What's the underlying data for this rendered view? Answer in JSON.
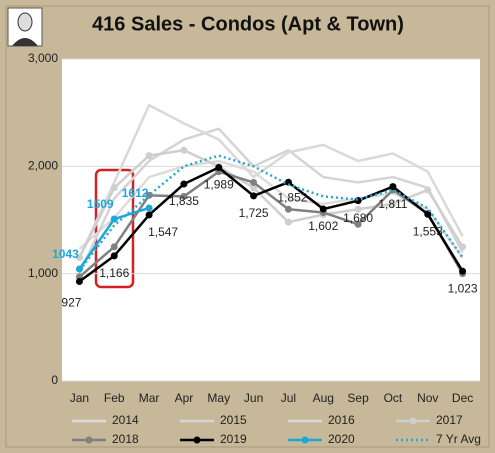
{
  "chart_data": {
    "type": "line",
    "title": "416 Sales - Condos (Apt & Town)",
    "categories": [
      "Jan",
      "Feb",
      "Mar",
      "Apr",
      "May",
      "Jun",
      "Jul",
      "Aug",
      "Sep",
      "Oct",
      "Nov",
      "Dec"
    ],
    "ylim": [
      0,
      3000
    ],
    "yticks": [
      0,
      {
        "value": 1000,
        "label": "1,000"
      },
      {
        "value": 2000,
        "label": "2,000"
      },
      {
        "value": 3000,
        "label": "3,000"
      }
    ],
    "grid": true,
    "legend": "bottom",
    "series": [
      {
        "name": "2014",
        "color": "#dcdcdc",
        "values": [
          1230,
          1520,
          1900,
          2000,
          2050,
          1950,
          1700,
          1650,
          1700,
          1750,
          1600,
          1150
        ]
      },
      {
        "name": "2015",
        "color": "#d4d4d4",
        "values": [
          1000,
          1700,
          2050,
          2250,
          2350,
          2000,
          2150,
          1900,
          1850,
          1900,
          1800,
          1200
        ]
      },
      {
        "name": "2016",
        "color": "#d9d9d9",
        "values": [
          1150,
          1850,
          2570,
          2400,
          2250,
          1900,
          2130,
          2200,
          2050,
          2120,
          1950,
          1350
        ]
      },
      {
        "name": "2017",
        "color": "#cfcfcf",
        "marker": true,
        "values": [
          1150,
          1800,
          2100,
          2150,
          2000,
          1800,
          1480,
          1550,
          1600,
          1650,
          1780,
          1250
        ]
      },
      {
        "name": "2018",
        "color": "#808080",
        "marker": true,
        "values": [
          970,
          1250,
          1730,
          1720,
          1950,
          1850,
          1600,
          1570,
          1460,
          1780,
          1560,
          1000
        ]
      },
      {
        "name": "2019",
        "color": "#000000",
        "marker": true,
        "width": 2.5,
        "values": [
          927,
          1166,
          1547,
          1835,
          1989,
          1725,
          1852,
          1602,
          1680,
          1811,
          1553,
          1023
        ],
        "value_labels": [
          "927",
          "1,166",
          "1,547",
          "1,835",
          "1,989",
          "1,725",
          "1,852",
          "1,602",
          "1,680",
          "1,811",
          "1,553",
          "1,023"
        ]
      },
      {
        "name": "2020",
        "color": "#1aa7d9",
        "marker": true,
        "width": 2.5,
        "values": [
          1043,
          1509,
          1612,
          null,
          null,
          null,
          null,
          null,
          null,
          null,
          null,
          null
        ],
        "value_labels": [
          "1043",
          "1509",
          "1612",
          null,
          null,
          null,
          null,
          null,
          null,
          null,
          null,
          null
        ]
      },
      {
        "name": "7 Yr Avg",
        "color": "#2aa6d0",
        "dash": true,
        "values": [
          1030,
          1450,
          1730,
          2000,
          2100,
          2000,
          1830,
          1720,
          1690,
          1780,
          1610,
          1150
        ]
      }
    ]
  }
}
